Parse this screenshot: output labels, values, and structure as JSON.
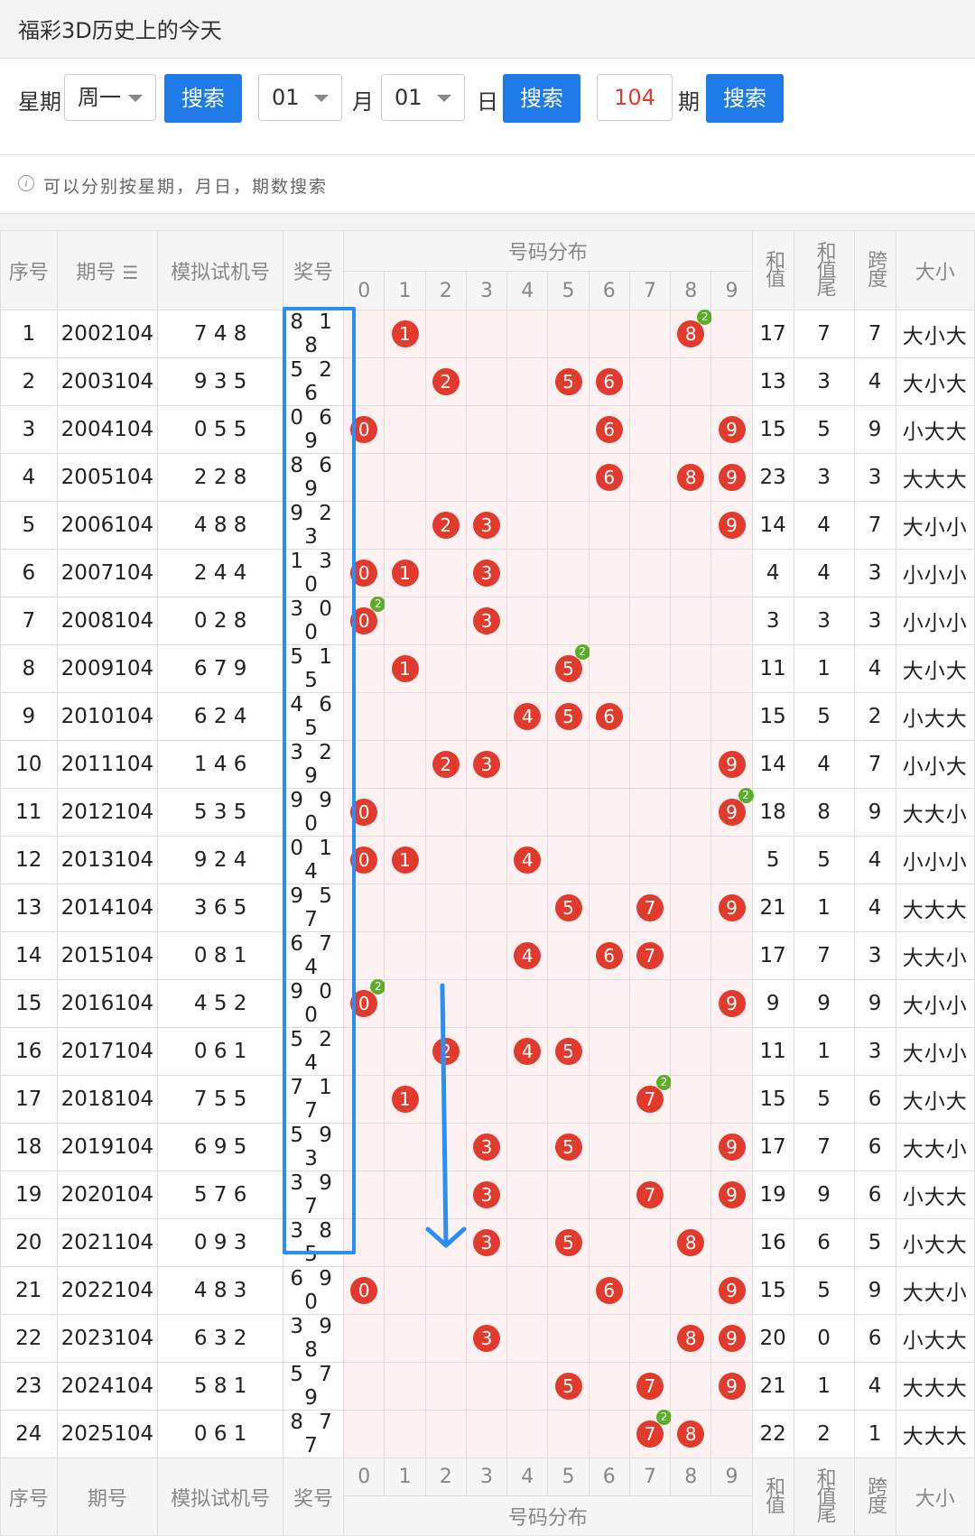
{
  "title": "福彩3D历史上的今天",
  "search": {
    "weekday_label": "星期",
    "weekday_value": "周一",
    "btn": "搜索",
    "month_value": "01",
    "month_label": "月",
    "day_value": "01",
    "day_label": "日",
    "issue_value": "104",
    "issue_label": "期"
  },
  "hint": "可以分别按星期，月日，期数搜索",
  "headers": {
    "seq": "序号",
    "issue": "期号",
    "sim": "模拟试机号",
    "prize": "奖号",
    "dist": "号码分布",
    "sum": "和值",
    "sum_tail": "和值尾",
    "span": "跨度",
    "size": "大小",
    "digits": [
      "0",
      "1",
      "2",
      "3",
      "4",
      "5",
      "6",
      "7",
      "8",
      "9"
    ]
  },
  "rows": [
    {
      "seq": "1",
      "issue": "2002104",
      "sim": "7 4 8",
      "draw": "8 1 8",
      "sum": "17",
      "tail": "7",
      "span": "7",
      "size": "大小大"
    },
    {
      "seq": "2",
      "issue": "2003104",
      "sim": "9 3 5",
      "draw": "5 2 6",
      "sum": "13",
      "tail": "3",
      "span": "4",
      "size": "大小大"
    },
    {
      "seq": "3",
      "issue": "2004104",
      "sim": "0 5 5",
      "draw": "0 6 9",
      "sum": "15",
      "tail": "5",
      "span": "9",
      "size": "小大大"
    },
    {
      "seq": "4",
      "issue": "2005104",
      "sim": "2 2 8",
      "draw": "8 6 9",
      "sum": "23",
      "tail": "3",
      "span": "3",
      "size": "大大大"
    },
    {
      "seq": "5",
      "issue": "2006104",
      "sim": "4 8 8",
      "draw": "9 2 3",
      "sum": "14",
      "tail": "4",
      "span": "7",
      "size": "大小小"
    },
    {
      "seq": "6",
      "issue": "2007104",
      "sim": "2 4 4",
      "draw": "1 3 0",
      "sum": "4",
      "tail": "4",
      "span": "3",
      "size": "小小小"
    },
    {
      "seq": "7",
      "issue": "2008104",
      "sim": "0 2 8",
      "draw": "3 0 0",
      "sum": "3",
      "tail": "3",
      "span": "3",
      "size": "小小小"
    },
    {
      "seq": "8",
      "issue": "2009104",
      "sim": "6 7 9",
      "draw": "5 1 5",
      "sum": "11",
      "tail": "1",
      "span": "4",
      "size": "大小大"
    },
    {
      "seq": "9",
      "issue": "2010104",
      "sim": "6 2 4",
      "draw": "4 6 5",
      "sum": "15",
      "tail": "5",
      "span": "2",
      "size": "小大大"
    },
    {
      "seq": "10",
      "issue": "2011104",
      "sim": "1 4 6",
      "draw": "3 2 9",
      "sum": "14",
      "tail": "4",
      "span": "7",
      "size": "小小大"
    },
    {
      "seq": "11",
      "issue": "2012104",
      "sim": "5 3 5",
      "draw": "9 9 0",
      "sum": "18",
      "tail": "8",
      "span": "9",
      "size": "大大小"
    },
    {
      "seq": "12",
      "issue": "2013104",
      "sim": "9 2 4",
      "draw": "0 1 4",
      "sum": "5",
      "tail": "5",
      "span": "4",
      "size": "小小小"
    },
    {
      "seq": "13",
      "issue": "2014104",
      "sim": "3 6 5",
      "draw": "9 5 7",
      "sum": "21",
      "tail": "1",
      "span": "4",
      "size": "大大大"
    },
    {
      "seq": "14",
      "issue": "2015104",
      "sim": "0 8 1",
      "draw": "6 7 4",
      "sum": "17",
      "tail": "7",
      "span": "3",
      "size": "大大小"
    },
    {
      "seq": "15",
      "issue": "2016104",
      "sim": "4 5 2",
      "draw": "9 0 0",
      "sum": "9",
      "tail": "9",
      "span": "9",
      "size": "大小小"
    },
    {
      "seq": "16",
      "issue": "2017104",
      "sim": "0 6 1",
      "draw": "5 2 4",
      "sum": "11",
      "tail": "1",
      "span": "3",
      "size": "大小小"
    },
    {
      "seq": "17",
      "issue": "2018104",
      "sim": "7 5 5",
      "draw": "7 1 7",
      "sum": "15",
      "tail": "5",
      "span": "6",
      "size": "大小大"
    },
    {
      "seq": "18",
      "issue": "2019104",
      "sim": "6 9 5",
      "draw": "5 9 3",
      "sum": "17",
      "tail": "7",
      "span": "6",
      "size": "大大小"
    },
    {
      "seq": "19",
      "issue": "2020104",
      "sim": "5 7 6",
      "draw": "3 9 7",
      "sum": "19",
      "tail": "9",
      "span": "6",
      "size": "小大大"
    },
    {
      "seq": "20",
      "issue": "2021104",
      "sim": "0 9 3",
      "draw": "3 8 5",
      "sum": "16",
      "tail": "6",
      "span": "5",
      "size": "小大大"
    },
    {
      "seq": "21",
      "issue": "2022104",
      "sim": "4 8 3",
      "draw": "6 9 0",
      "sum": "15",
      "tail": "5",
      "span": "9",
      "size": "大大小"
    },
    {
      "seq": "22",
      "issue": "2023104",
      "sim": "6 3 2",
      "draw": "3 9 8",
      "sum": "20",
      "tail": "0",
      "span": "6",
      "size": "小大大"
    },
    {
      "seq": "23",
      "issue": "2024104",
      "sim": "5 8 1",
      "draw": "5 7 9",
      "sum": "21",
      "tail": "1",
      "span": "4",
      "size": "大大大"
    },
    {
      "seq": "24",
      "issue": "2025104",
      "sim": "0 6 1",
      "draw": "8 7 7",
      "sum": "22",
      "tail": "2",
      "span": "1",
      "size": "大大大"
    }
  ],
  "colors": {
    "accent": "#1e7be8",
    "ball": "#e23b2e",
    "repeat": "#5aae2a",
    "highlight": "#2a8ff5"
  }
}
